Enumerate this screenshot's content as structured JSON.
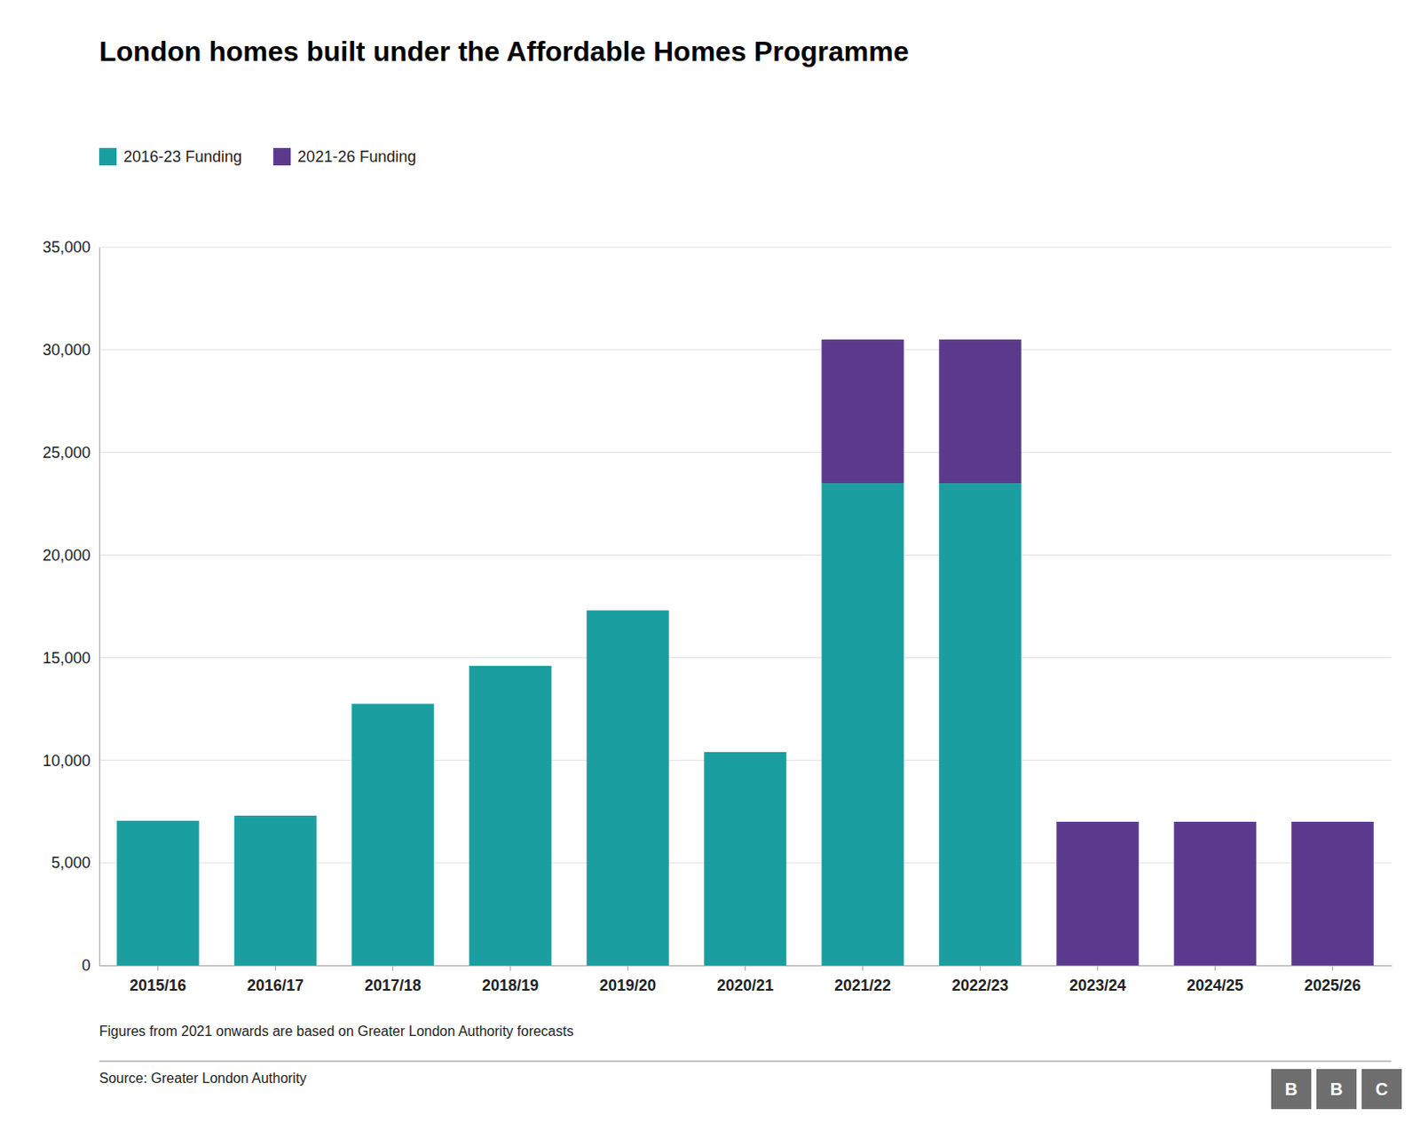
{
  "chart_data": {
    "type": "bar",
    "title": "London homes built under the Affordable Homes Programme",
    "categories": [
      "2015/16",
      "2016/17",
      "2017/18",
      "2018/19",
      "2019/20",
      "2020/21",
      "2021/22",
      "2022/23",
      "2023/24",
      "2024/25",
      "2025/26"
    ],
    "series": [
      {
        "name": "2016-23 Funding",
        "color": "#1a9ea0",
        "values": [
          7050,
          7300,
          12750,
          14600,
          17300,
          10400,
          23500,
          23500,
          0,
          0,
          0
        ]
      },
      {
        "name": "2021-26 Funding",
        "color": "#5b3a8e",
        "values": [
          0,
          0,
          0,
          0,
          0,
          0,
          7000,
          7000,
          7000,
          7000,
          7000
        ]
      }
    ],
    "stacked": true,
    "ylim": [
      0,
      35000
    ],
    "yticks": [
      0,
      {
        "value": 5000,
        "label": "5,000"
      },
      {
        "value": 10000,
        "label": "10,000"
      },
      {
        "value": 15000,
        "label": "15,000"
      },
      {
        "value": 20000,
        "label": "20,000"
      },
      {
        "value": 25000,
        "label": "25,000"
      },
      {
        "value": 30000,
        "label": "30,000"
      },
      {
        "value": 35000,
        "label": "35,000"
      }
    ],
    "grid": true,
    "legend": "top-left",
    "footnote": "Figures from 2021 onwards are based on Greater London Authority forecasts",
    "source": "Source: Greater London Authority",
    "logo": [
      "B",
      "B",
      "C"
    ]
  }
}
